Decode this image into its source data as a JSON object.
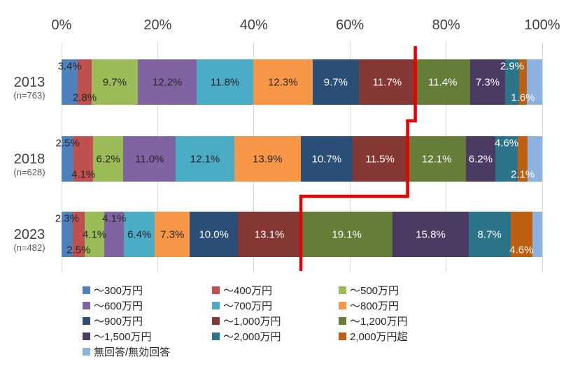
{
  "chart_data": {
    "type": "bar",
    "stacked": true,
    "orientation": "horizontal",
    "axis": {
      "position": "top",
      "range": [
        0,
        100
      ],
      "ticks": [
        "0%",
        "20%",
        "40%",
        "60%",
        "80%",
        "100%"
      ],
      "gridlines": true
    },
    "rows": [
      {
        "year": "2013",
        "n_label": "(n=763)"
      },
      {
        "year": "2018",
        "n_label": "(n=628)"
      },
      {
        "year": "2023",
        "n_label": "(n=482)"
      }
    ],
    "series": [
      {
        "name": "～300万円",
        "color": "#4F81BD",
        "text": "dark",
        "show_labels": true,
        "values": [
          3.4,
          2.5,
          2.3
        ],
        "label_pos": [
          "up",
          "up",
          "up"
        ]
      },
      {
        "name": "～400万円",
        "color": "#C0504D",
        "text": "dark",
        "show_labels": true,
        "values": [
          2.8,
          4.1,
          2.5
        ],
        "label_pos": [
          "down",
          "down",
          "down"
        ]
      },
      {
        "name": "～500万円",
        "color": "#9BBB59",
        "text": "dark",
        "show_labels": true,
        "values": [
          9.7,
          6.2,
          4.1
        ],
        "label_pos": [
          "center",
          "center",
          "center"
        ]
      },
      {
        "name": "～600万円",
        "color": "#8064A2",
        "text": "dark",
        "show_labels": true,
        "values": [
          12.2,
          11.0,
          4.1
        ],
        "label_pos": [
          "center",
          "center",
          "up"
        ]
      },
      {
        "name": "～700万円",
        "color": "#4BACC6",
        "text": "dark",
        "show_labels": true,
        "values": [
          11.8,
          12.1,
          6.4
        ],
        "label_pos": [
          "center",
          "center",
          "center"
        ]
      },
      {
        "name": "～800万円",
        "color": "#F79646",
        "text": "dark",
        "show_labels": true,
        "values": [
          12.3,
          13.9,
          7.3
        ],
        "label_pos": [
          "center",
          "center",
          "center"
        ]
      },
      {
        "name": "～900万円",
        "color": "#2B4E77",
        "text": "light",
        "show_labels": true,
        "values": [
          9.7,
          10.7,
          10.0
        ],
        "label_pos": [
          "center",
          "center",
          "center"
        ]
      },
      {
        "name": "～1,000万円",
        "color": "#843733",
        "text": "light",
        "show_labels": true,
        "values": [
          11.7,
          11.5,
          13.1
        ],
        "label_pos": [
          "center",
          "center",
          "center"
        ]
      },
      {
        "name": "～1,200万円",
        "color": "#667C39",
        "text": "light",
        "show_labels": true,
        "values": [
          11.4,
          12.1,
          19.1
        ],
        "label_pos": [
          "center",
          "center",
          "center"
        ]
      },
      {
        "name": "～1,500万円",
        "color": "#4B3B62",
        "text": "light",
        "show_labels": true,
        "values": [
          7.3,
          6.2,
          15.8
        ],
        "label_pos": [
          "center",
          "center",
          "center"
        ]
      },
      {
        "name": "～2,000万円",
        "color": "#2C7489",
        "text": "light",
        "show_labels": true,
        "values": [
          2.9,
          4.6,
          8.7
        ],
        "label_pos": [
          "up",
          "up",
          "center"
        ]
      },
      {
        "name": "2,000万円超",
        "color": "#BE600F",
        "text": "light",
        "show_labels": true,
        "values": [
          1.6,
          2.1,
          4.6
        ],
        "label_pos": [
          "down",
          "down",
          "down"
        ]
      },
      {
        "name": "無回答/無効回答",
        "color": "#8CB2DF",
        "text": "light",
        "show_labels": false,
        "values": [
          3.2,
          3.0,
          2.0
        ],
        "label_pos": [
          "center",
          "center",
          "center"
        ]
      }
    ],
    "annotation_line": {
      "color": "#E60000",
      "boundary_after_series": "～1,000万円",
      "cumulative_percents": [
        73.6,
        72.0,
        49.8
      ]
    },
    "legend_position": "bottom",
    "legend_columns": 3
  }
}
